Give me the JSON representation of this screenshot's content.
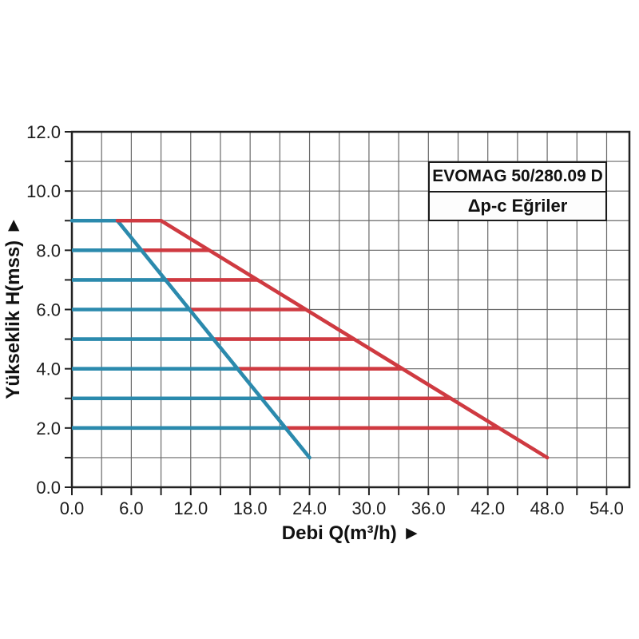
{
  "legend_box": {
    "line1": "EVOMAG 50/280.09 D",
    "line2": "Δp-c Eğriler"
  },
  "chart_data": {
    "type": "line",
    "title": "",
    "xlabel": "Debi Q(m³/h) ►",
    "ylabel": "Yükseklik H(mss) ►",
    "xlim": [
      0,
      56.3
    ],
    "ylim": [
      0,
      12
    ],
    "grid": "on",
    "x_minor_step": 3,
    "y_minor_step": 1,
    "x_ticks": {
      "values": [
        0,
        6,
        12,
        18,
        24,
        30,
        36,
        42,
        48,
        54
      ],
      "labels": [
        "0.0",
        "6.0",
        "12.0",
        "18.0",
        "24.0",
        "30.0",
        "36.0",
        "42.0",
        "48.0",
        "54.0"
      ]
    },
    "y_ticks": {
      "values": [
        0,
        2,
        4,
        6,
        8,
        10,
        12
      ],
      "labels": [
        "0.0",
        "2.0",
        "4.0",
        "6.0",
        "8.0",
        "10.0",
        "12.0"
      ]
    },
    "colors": {
      "blue": "#2b8aad",
      "red": "#cf3a41",
      "grid": "#6a6a6a",
      "frame": "#222222",
      "text": "#1c1c1c"
    },
    "series": [
      {
        "name": "pump-curve-blue",
        "color": "blue",
        "points": [
          [
            0,
            9
          ],
          [
            4.6,
            9
          ],
          [
            24,
            1
          ]
        ]
      },
      {
        "name": "pump-curve-red",
        "color": "red",
        "points": [
          [
            4.6,
            9
          ],
          [
            9,
            9
          ],
          [
            48,
            1
          ]
        ]
      }
    ],
    "iso_segments": [
      {
        "h": 8,
        "x1": 0,
        "x2": 7.03,
        "color": "blue"
      },
      {
        "h": 7,
        "x1": 0,
        "x2": 9.45,
        "color": "blue"
      },
      {
        "h": 6,
        "x1": 0,
        "x2": 11.88,
        "color": "blue"
      },
      {
        "h": 5,
        "x1": 0,
        "x2": 14.3,
        "color": "blue"
      },
      {
        "h": 4,
        "x1": 0,
        "x2": 16.73,
        "color": "blue"
      },
      {
        "h": 3,
        "x1": 0,
        "x2": 19.15,
        "color": "blue"
      },
      {
        "h": 2,
        "x1": 0,
        "x2": 21.58,
        "color": "blue"
      },
      {
        "h": 8,
        "x1": 7.03,
        "x2": 13.88,
        "color": "red"
      },
      {
        "h": 7,
        "x1": 9.45,
        "x2": 18.75,
        "color": "red"
      },
      {
        "h": 6,
        "x1": 11.88,
        "x2": 23.63,
        "color": "red"
      },
      {
        "h": 5,
        "x1": 14.3,
        "x2": 28.5,
        "color": "red"
      },
      {
        "h": 4,
        "x1": 16.73,
        "x2": 33.38,
        "color": "red"
      },
      {
        "h": 3,
        "x1": 19.15,
        "x2": 38.25,
        "color": "red"
      },
      {
        "h": 2,
        "x1": 21.58,
        "x2": 43.13,
        "color": "red"
      }
    ]
  }
}
